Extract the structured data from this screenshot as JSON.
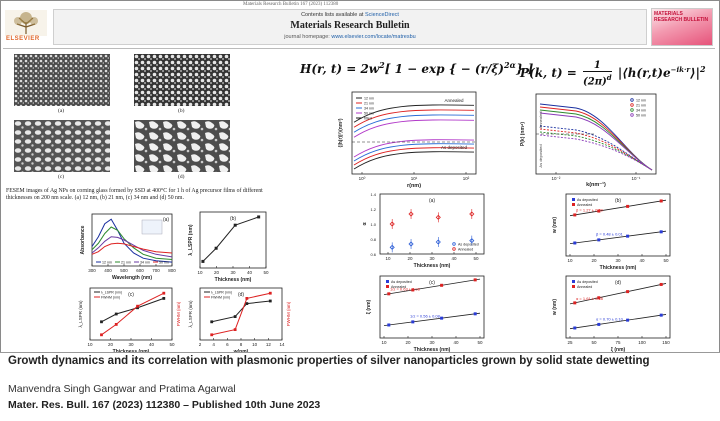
{
  "header": {
    "doi_line": "Materials Research Bulletin 167 (2023) 112380",
    "publisher": "ELSEVIER",
    "contents_line_prefix": "Contents lists available at",
    "contents_line_link": "ScienceDirect",
    "journal": "Materials Research Bulletin",
    "homepage_line_prefix": "journal homepage:",
    "homepage_line_link": "www.elsevier.com/locate/matresbu",
    "cover_text": "MATERIALS RESEARCH BULLETIN"
  },
  "sem": {
    "labels": [
      "(a)",
      "(b)",
      "(c)",
      "(d)"
    ],
    "caption": "FESEM images of Ag NPs on corning glass formed by SSD at 400°C for 1 h of Ag precursor films of different thicknesses on 200 nm scale. (a) 12 nm, (b) 21 nm, (c) 34 nm and (d) 50 nm."
  },
  "equations": {
    "h_lhs": "H(r, t) = 2w",
    "h_sup": "2",
    "h_body": "[ 1 − exp { − (r/ξ)",
    "h_exp": "2α",
    "h_close": "} ]",
    "p_lhs": "P(k, t) =",
    "p_num": "1",
    "p_den": "(2π)",
    "p_den_sup": "d",
    "p_rhs": "|⟨h(r,t)e",
    "p_rhs_sup": "−ik·r",
    "p_rhs_close": "⟩|",
    "p_rhs_close_sup": "2"
  },
  "chart_data": [
    {
      "id": "absorbance",
      "type": "line",
      "label": "(a)",
      "xlabel": "Wavelength (nm)",
      "ylabel": "Absorbance",
      "xlim": [
        300,
        800
      ],
      "ylim": [
        0,
        0.8
      ],
      "x_ticks": [
        "300",
        "400",
        "500",
        "600",
        "700",
        "800"
      ],
      "legend": [
        "12 nm",
        "21 nm",
        "34 nm",
        "50 nm"
      ],
      "colors": [
        "#1a2fa0",
        "#2e8b2e",
        "#6a3aa3",
        "#d22"
      ],
      "series": [
        {
          "name": "12 nm",
          "x": [
            300,
            340,
            380,
            420,
            460,
            500,
            560,
            620,
            700,
            800
          ],
          "y": [
            0.3,
            0.45,
            0.65,
            0.72,
            0.55,
            0.35,
            0.2,
            0.12,
            0.08,
            0.06
          ]
        },
        {
          "name": "21 nm",
          "x": [
            300,
            340,
            380,
            420,
            460,
            500,
            560,
            620,
            700,
            800
          ],
          "y": [
            0.25,
            0.35,
            0.5,
            0.6,
            0.55,
            0.42,
            0.28,
            0.18,
            0.12,
            0.1
          ]
        },
        {
          "name": "34 nm",
          "x": [
            300,
            340,
            380,
            420,
            460,
            500,
            560,
            620,
            700,
            800
          ],
          "y": [
            0.2,
            0.28,
            0.38,
            0.45,
            0.44,
            0.4,
            0.32,
            0.24,
            0.18,
            0.14
          ]
        },
        {
          "name": "50 nm",
          "x": [
            300,
            340,
            380,
            420,
            460,
            500,
            560,
            620,
            700,
            800
          ],
          "y": [
            0.18,
            0.22,
            0.3,
            0.34,
            0.35,
            0.34,
            0.3,
            0.26,
            0.22,
            0.2
          ]
        }
      ]
    },
    {
      "id": "lspr_peak",
      "type": "line",
      "label": "(b)",
      "xlabel": "Thickness (nm)",
      "ylabel": "λ_LSPR (nm)",
      "x": [
        12,
        21,
        34,
        50
      ],
      "y": [
        420,
        460,
        530,
        555
      ],
      "xlim": [
        10,
        55
      ],
      "ylim": [
        400,
        570
      ],
      "x_ticks": [
        "10",
        "20",
        "30",
        "40",
        "50"
      ]
    },
    {
      "id": "fwhm_thickness",
      "type": "line",
      "label": "(c)",
      "xlabel": "Thickness (nm)",
      "ylabel": "λ_LSPR (nm)",
      "ylabel_right": "FWHM (nm)",
      "legend": [
        "λ_LSPR (nm)",
        "FWHM (nm)"
      ],
      "x_ticks": [
        "10",
        "20",
        "30",
        "40",
        "50"
      ],
      "series": [
        {
          "name": "λ_LSPR (nm)",
          "x": [
            12,
            21,
            34,
            50
          ],
          "y": [
            0.35,
            0.5,
            0.62,
            0.8
          ],
          "color": "#222"
        },
        {
          "name": "FWHM (nm)",
          "x": [
            12,
            21,
            34,
            50
          ],
          "y": [
            0.1,
            0.3,
            0.65,
            0.9
          ],
          "color": "#d22"
        }
      ]
    },
    {
      "id": "fwhm_w",
      "type": "line",
      "label": "(d)",
      "xlabel": "w(nm)",
      "ylabel": "λ_LSPR (nm)",
      "ylabel_right": "FWHM (nm)",
      "legend": [
        "λ_LSPR (nm)",
        "FWHM (nm)"
      ],
      "x_ticks": [
        "2",
        "4",
        "6",
        "8",
        "10",
        "12",
        "14"
      ],
      "series": [
        {
          "name": "λ_LSPR (nm)",
          "x": [
            3,
            7,
            9,
            13
          ],
          "y": [
            0.35,
            0.45,
            0.7,
            0.75
          ],
          "color": "#222"
        },
        {
          "name": "FWHM (nm)",
          "x": [
            3,
            7,
            9,
            13
          ],
          "y": [
            0.1,
            0.2,
            0.8,
            0.9
          ],
          "color": "#d22"
        }
      ]
    },
    {
      "id": "hhcf",
      "type": "line",
      "xlabel": "r(nm)",
      "ylabel": "⟨|h(r)|²⟩(nm²)",
      "legend": [
        "12 nm",
        "21 nm",
        "34 nm",
        "50 nm",
        "fitted"
      ],
      "annotations": [
        "Annealed",
        "As deposited"
      ],
      "x_ticks": [
        "10⁰",
        "10¹",
        "10²"
      ],
      "colors": [
        "#222",
        "#d22",
        "#2a6cd6",
        "#b23ac9",
        "#1a1a1a"
      ]
    },
    {
      "id": "psd",
      "type": "line",
      "xlabel": "k(nm⁻¹)",
      "ylabel": "P(k) (nm⁴)",
      "legend": [
        "12 nm",
        "21 nm",
        "34 nm",
        "50 nm"
      ],
      "annotations": [
        "Annealed",
        "As deposited"
      ],
      "x_ticks": [
        "10⁻²",
        "10⁻¹"
      ],
      "colors": [
        "#1a2fa0",
        "#d22",
        "#2e8b2e",
        "#8a3ab9"
      ]
    },
    {
      "id": "alpha",
      "type": "scatter",
      "label": "(a)",
      "xlabel": "Thickness (nm)",
      "ylabel": "α",
      "legend": [
        "As deposited",
        "Annealed"
      ],
      "x_ticks": [
        "10",
        "20",
        "30",
        "40",
        "50"
      ],
      "y_ticks": [
        "0.6",
        "0.8",
        "1.0",
        "1.2",
        "1.4"
      ],
      "series": [
        {
          "name": "As deposited",
          "x": [
            12,
            21,
            34,
            50
          ],
          "y": [
            0.7,
            0.75,
            0.78,
            0.8
          ],
          "color": "#2a5cd6"
        },
        {
          "name": "Annealed",
          "x": [
            12,
            21,
            34,
            50
          ],
          "y": [
            1.05,
            1.2,
            1.15,
            1.2
          ],
          "color": "#d22"
        }
      ]
    },
    {
      "id": "w_thickness",
      "type": "line",
      "label": "(b)",
      "xlabel": "Thickness (nm)",
      "ylabel": "w (nm)",
      "legend": [
        "As deposited",
        "Annealed"
      ],
      "annotations": [
        "β = 1.27 ± 0.09",
        "β = 0.48 ± 0.01"
      ],
      "x_ticks": [
        "10",
        "20",
        "30",
        "40",
        "50"
      ]
    },
    {
      "id": "xi_thickness",
      "type": "line",
      "label": "(c)",
      "xlabel": "Thickness (nm)",
      "ylabel": "ξ (nm)",
      "legend": [
        "As deposited",
        "Annealed"
      ],
      "annotations": [
        "1/z = 0.63 ± 0.08",
        "1/z = 0.56 ± 0.08"
      ],
      "x_ticks": [
        "10",
        "20",
        "30",
        "40",
        "50"
      ]
    },
    {
      "id": "w_xi",
      "type": "line",
      "label": "(d)",
      "xlabel": "ξ (nm)",
      "ylabel": "w (nm)",
      "legend": [
        "As deposited",
        "Annealed"
      ],
      "annotations": [
        "α = 1.61 ± 0.18",
        "α = 0.70 ± 0.10"
      ],
      "x_ticks": [
        "25",
        "50",
        "75",
        "100",
        "150"
      ]
    }
  ],
  "footer": {
    "title": "Growth dynamics and its correlation with plasmonic properties of silver nanoparticles grown by solid state dewetting",
    "authors": "Manvendra Singh Gangwar and Pratima Agarwal",
    "citation": "Mater. Res. Bull. 167 (2023) 112380 – Published 10th June 2023"
  }
}
